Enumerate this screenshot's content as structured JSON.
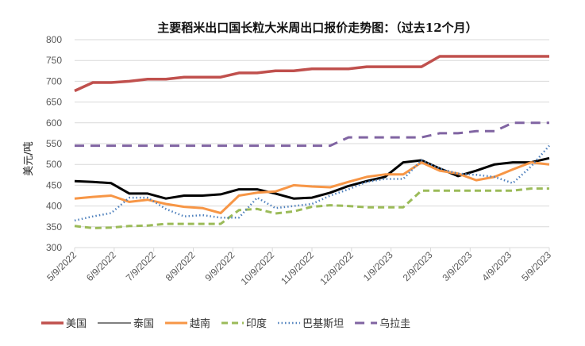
{
  "chart_data": {
    "type": "line",
    "title": "主要稻米出口国长粒大米周出口报价走势图：（过去12个月）",
    "ylabel": "美元/吨",
    "xlabel": "",
    "ylim": [
      300,
      800
    ],
    "yticks": [
      "300",
      "350",
      "400",
      "450",
      "500",
      "550",
      "600",
      "650",
      "700",
      "750",
      "800"
    ],
    "xticks": [
      "5/9/2022",
      "6/9/2022",
      "7/9/2022",
      "8/9/2022",
      "9/9/2022",
      "10/9/2022",
      "11/9/2022",
      "12/9/2022",
      "1/9/2023",
      "2/9/2023",
      "3/9/2023",
      "4/9/2023",
      "5/9/2023"
    ],
    "grid": true,
    "legend": "bottom",
    "x_note_range": [
      "5/9/2022",
      "5/9/2023"
    ],
    "series": [
      {
        "name": "美国",
        "color": "#C0504D",
        "style": "solid-thick",
        "values": [
          677,
          697,
          697,
          700,
          705,
          705,
          710,
          710,
          710,
          720,
          720,
          725,
          725,
          730,
          730,
          730,
          735,
          735,
          735,
          735,
          760,
          760,
          760,
          760,
          760,
          760,
          760
        ]
      },
      {
        "name": "泰国",
        "color": "#000000",
        "style": "solid",
        "values": [
          460,
          458,
          455,
          430,
          430,
          418,
          425,
          425,
          428,
          440,
          440,
          430,
          418,
          420,
          432,
          448,
          460,
          470,
          505,
          510,
          490,
          472,
          485,
          500,
          505,
          505,
          515
        ]
      },
      {
        "name": "越南",
        "color": "#F79646",
        "style": "solid",
        "values": [
          418,
          422,
          425,
          410,
          415,
          405,
          398,
          395,
          383,
          425,
          432,
          435,
          450,
          447,
          445,
          458,
          470,
          476,
          476,
          505,
          485,
          478,
          462,
          470,
          488,
          505,
          500
        ]
      },
      {
        "name": "印度",
        "color": "#9BBB59",
        "style": "dash",
        "values": [
          352,
          347,
          348,
          352,
          353,
          357,
          357,
          357,
          357,
          390,
          393,
          382,
          387,
          398,
          402,
          400,
          397,
          397,
          397,
          437,
          437,
          437,
          437,
          437,
          437,
          442,
          442
        ]
      },
      {
        "name": "巴基斯坦",
        "color": "#4F81BD",
        "style": "dot",
        "values": [
          365,
          375,
          383,
          420,
          420,
          393,
          375,
          378,
          372,
          372,
          420,
          395,
          400,
          405,
          425,
          440,
          458,
          465,
          465,
          510,
          490,
          478,
          475,
          470,
          455,
          495,
          545
        ]
      },
      {
        "name": "乌拉圭",
        "color": "#8064A2",
        "style": "longdash",
        "values": [
          545,
          545,
          545,
          545,
          545,
          545,
          545,
          545,
          545,
          545,
          545,
          545,
          545,
          545,
          545,
          565,
          565,
          565,
          565,
          565,
          575,
          575,
          580,
          580,
          600,
          600,
          600
        ]
      }
    ]
  }
}
